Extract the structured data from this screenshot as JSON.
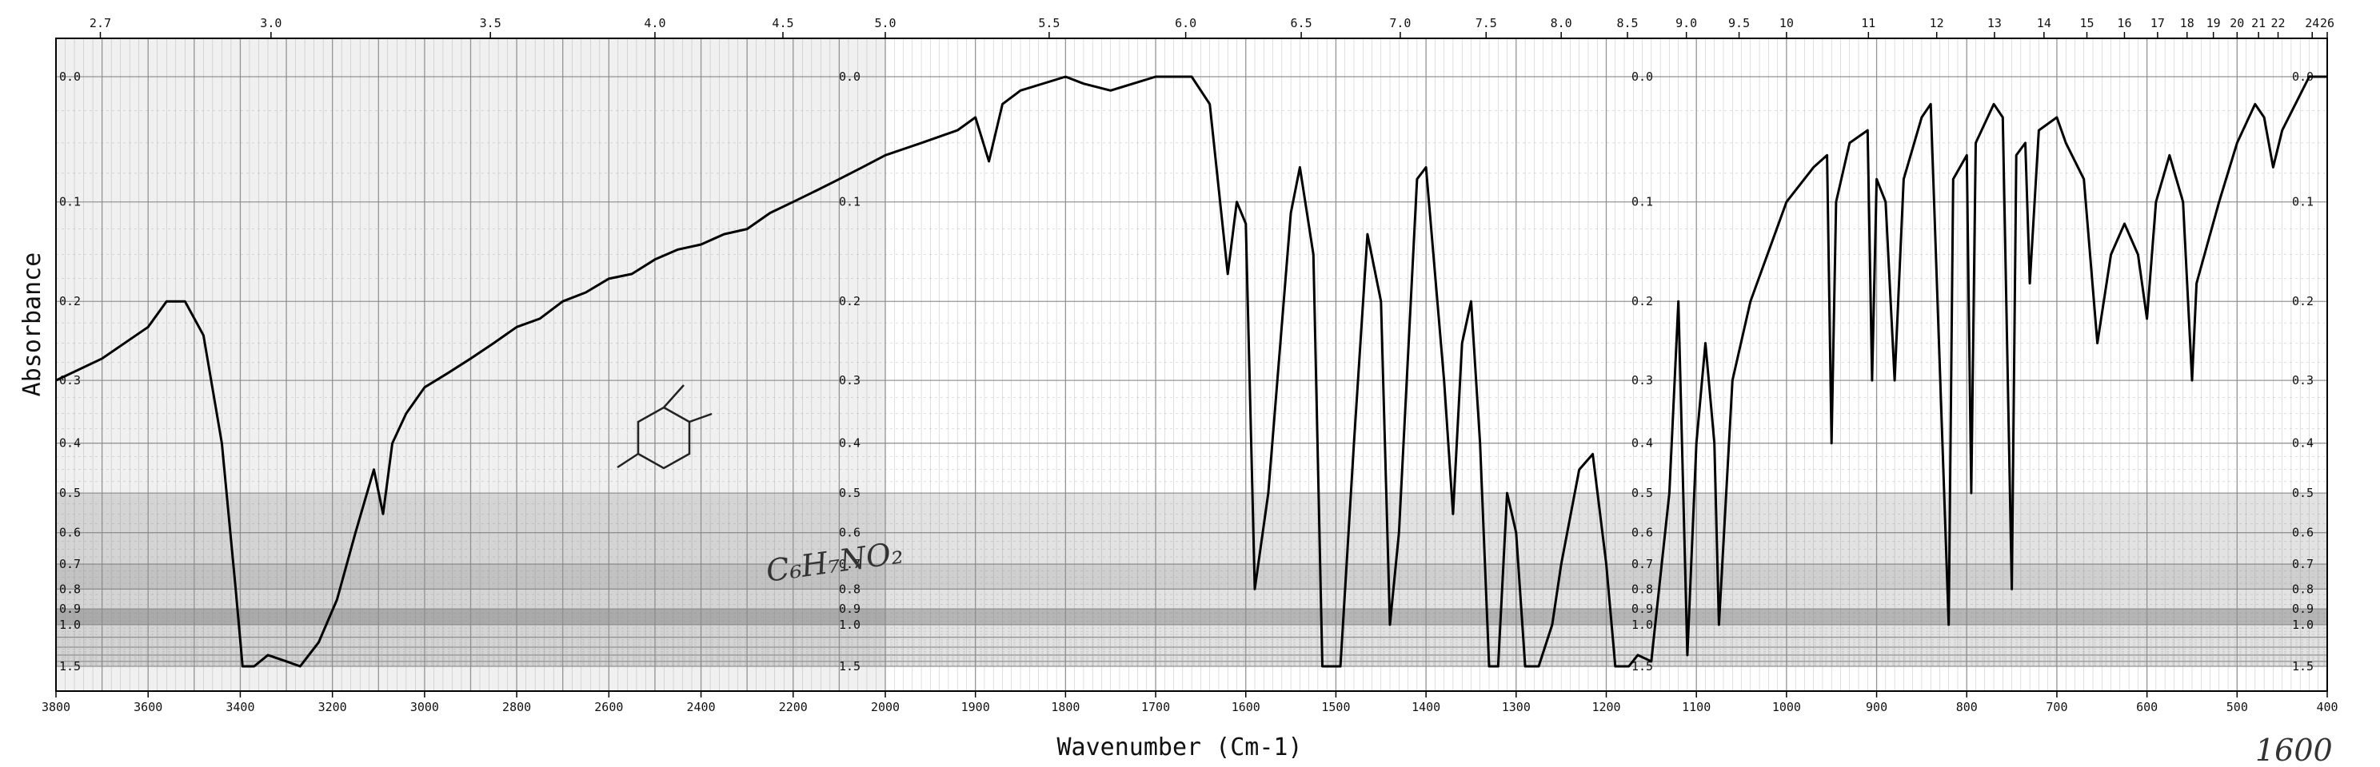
{
  "chart_data": {
    "type": "line",
    "xlabel": "Wavenumber (Cm-1)",
    "ylabel": "Absorbance",
    "x_axis": {
      "reversed": true,
      "range": [
        3800,
        400
      ],
      "ticks": [
        3800,
        3600,
        3400,
        3200,
        3000,
        2800,
        2600,
        2400,
        2200,
        2000,
        1900,
        1800,
        1700,
        1600,
        1500,
        1400,
        1300,
        1200,
        1100,
        1000,
        900,
        800,
        700,
        600,
        500,
        400
      ]
    },
    "top_axis": {
      "unit": "micrometre",
      "ticks": [
        "2.7",
        "3.0",
        "3.5",
        "4.0",
        "4.5",
        "5.0",
        "5.5",
        "6.0",
        "6.5",
        "7.0",
        "7.5",
        "8.0",
        "8.5",
        "9.0",
        "9.5",
        "10",
        "11",
        "12",
        "13",
        "14",
        "15",
        "16",
        "17",
        "18",
        "19",
        "20",
        "21",
        "22",
        "24",
        "26"
      ]
    },
    "y_axis": {
      "scale": "log-transmittance",
      "range": [
        0,
        1.5
      ],
      "ticks": [
        "0.0",
        "0.1",
        "0.2",
        "0.3",
        "0.4",
        "0.5",
        "0.6",
        "0.7",
        "0.8",
        "0.9",
        "1.0",
        "1.5"
      ]
    },
    "grid": true,
    "series": [
      {
        "values": [
          [
            3800,
            0.3
          ],
          [
            3700,
            0.27
          ],
          [
            3600,
            0.23
          ],
          [
            3560,
            0.2
          ],
          [
            3520,
            0.2
          ],
          [
            3480,
            0.24
          ],
          [
            3440,
            0.4
          ],
          [
            3410,
            0.8
          ],
          [
            3395,
            1.5
          ],
          [
            3370,
            1.5
          ],
          [
            3340,
            1.3
          ],
          [
            3300,
            1.4
          ],
          [
            3270,
            1.5
          ],
          [
            3230,
            1.15
          ],
          [
            3190,
            0.85
          ],
          [
            3150,
            0.6
          ],
          [
            3110,
            0.45
          ],
          [
            3090,
            0.55
          ],
          [
            3070,
            0.4
          ],
          [
            3040,
            0.35
          ],
          [
            3000,
            0.31
          ],
          [
            2950,
            0.29
          ],
          [
            2900,
            0.27
          ],
          [
            2850,
            0.25
          ],
          [
            2800,
            0.23
          ],
          [
            2750,
            0.22
          ],
          [
            2700,
            0.2
          ],
          [
            2650,
            0.19
          ],
          [
            2600,
            0.175
          ],
          [
            2550,
            0.17
          ],
          [
            2500,
            0.155
          ],
          [
            2450,
            0.145
          ],
          [
            2400,
            0.14
          ],
          [
            2350,
            0.13
          ],
          [
            2300,
            0.125
          ],
          [
            2250,
            0.11
          ],
          [
            2200,
            0.1
          ],
          [
            2150,
            0.09
          ],
          [
            2100,
            0.08
          ],
          [
            2050,
            0.07
          ],
          [
            2000,
            0.06
          ],
          [
            1960,
            0.05
          ],
          [
            1920,
            0.04
          ],
          [
            1900,
            0.03
          ],
          [
            1885,
            0.065
          ],
          [
            1870,
            0.02
          ],
          [
            1850,
            0.01
          ],
          [
            1800,
            0.0
          ],
          [
            1780,
            0.005
          ],
          [
            1750,
            0.01
          ],
          [
            1700,
            0.0
          ],
          [
            1660,
            0.0
          ],
          [
            1640,
            0.02
          ],
          [
            1620,
            0.17
          ],
          [
            1610,
            0.1
          ],
          [
            1600,
            0.12
          ],
          [
            1590,
            0.8
          ],
          [
            1575,
            0.5
          ],
          [
            1550,
            0.11
          ],
          [
            1540,
            0.07
          ],
          [
            1525,
            0.15
          ],
          [
            1515,
            1.5
          ],
          [
            1495,
            1.5
          ],
          [
            1480,
            0.4
          ],
          [
            1465,
            0.13
          ],
          [
            1450,
            0.2
          ],
          [
            1440,
            1.0
          ],
          [
            1430,
            0.6
          ],
          [
            1410,
            0.08
          ],
          [
            1400,
            0.07
          ],
          [
            1380,
            0.3
          ],
          [
            1370,
            0.55
          ],
          [
            1360,
            0.25
          ],
          [
            1350,
            0.2
          ],
          [
            1340,
            0.4
          ],
          [
            1330,
            1.5
          ],
          [
            1320,
            1.5
          ],
          [
            1310,
            0.5
          ],
          [
            1300,
            0.6
          ],
          [
            1290,
            1.5
          ],
          [
            1275,
            1.5
          ],
          [
            1260,
            1.0
          ],
          [
            1250,
            0.7
          ],
          [
            1230,
            0.45
          ],
          [
            1215,
            0.42
          ],
          [
            1200,
            0.7
          ],
          [
            1190,
            1.5
          ],
          [
            1175,
            1.5
          ],
          [
            1165,
            1.3
          ],
          [
            1150,
            1.4
          ],
          [
            1130,
            0.5
          ],
          [
            1120,
            0.2
          ],
          [
            1110,
            1.3
          ],
          [
            1100,
            0.4
          ],
          [
            1090,
            0.25
          ],
          [
            1080,
            0.4
          ],
          [
            1075,
            1.0
          ],
          [
            1060,
            0.3
          ],
          [
            1040,
            0.2
          ],
          [
            1000,
            0.1
          ],
          [
            970,
            0.07
          ],
          [
            955,
            0.06
          ],
          [
            950,
            0.4
          ],
          [
            945,
            0.1
          ],
          [
            930,
            0.05
          ],
          [
            910,
            0.04
          ],
          [
            905,
            0.3
          ],
          [
            900,
            0.08
          ],
          [
            890,
            0.1
          ],
          [
            880,
            0.3
          ],
          [
            870,
            0.08
          ],
          [
            850,
            0.03
          ],
          [
            840,
            0.02
          ],
          [
            820,
            1.0
          ],
          [
            815,
            0.08
          ],
          [
            800,
            0.06
          ],
          [
            795,
            0.5
          ],
          [
            790,
            0.05
          ],
          [
            770,
            0.02
          ],
          [
            760,
            0.03
          ],
          [
            750,
            0.8
          ],
          [
            745,
            0.06
          ],
          [
            735,
            0.05
          ],
          [
            730,
            0.18
          ],
          [
            720,
            0.04
          ],
          [
            700,
            0.03
          ],
          [
            690,
            0.05
          ],
          [
            670,
            0.08
          ],
          [
            655,
            0.25
          ],
          [
            640,
            0.15
          ],
          [
            625,
            0.12
          ],
          [
            610,
            0.15
          ],
          [
            600,
            0.22
          ],
          [
            590,
            0.1
          ],
          [
            575,
            0.06
          ],
          [
            560,
            0.1
          ],
          [
            550,
            0.3
          ],
          [
            545,
            0.18
          ],
          [
            520,
            0.1
          ],
          [
            500,
            0.05
          ],
          [
            480,
            0.02
          ],
          [
            470,
            0.03
          ],
          [
            460,
            0.07
          ],
          [
            450,
            0.04
          ],
          [
            420,
            0.0
          ],
          [
            400,
            0.0
          ]
        ]
      }
    ],
    "annotations": {
      "handwriting": "C₆H₇NO₂",
      "margin_note": "1600"
    }
  },
  "colors": {
    "grid": "#8a8a8a",
    "trace": "#000000",
    "paper": "#ffffff",
    "band": "#b5b5b5"
  }
}
